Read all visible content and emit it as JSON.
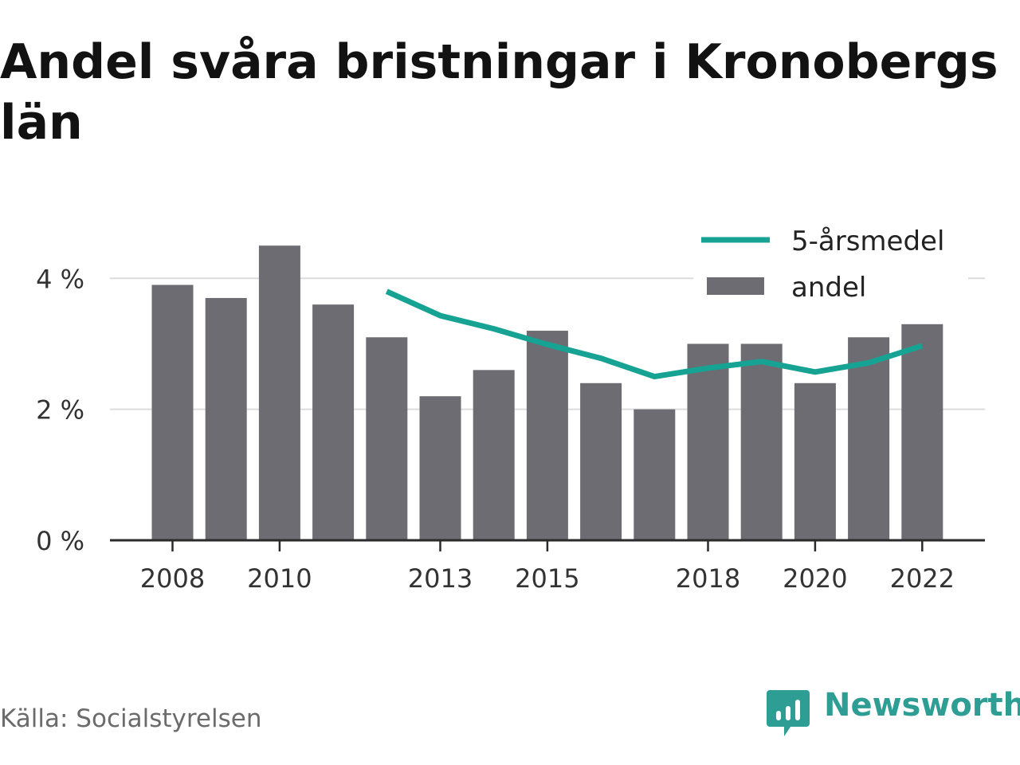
{
  "title": "Andel svåra bristningar i Kronobergs län",
  "source": "Källa: Socialstyrelsen",
  "brand": {
    "name": "Newsworthy",
    "icon": "newsworthy-logo-icon",
    "color": "#2e9e95"
  },
  "colors": {
    "bar": "#6d6c72",
    "line": "#16a394",
    "grid": "#dcdcdc",
    "axis": "#2b2b2b",
    "text": "#333333"
  },
  "chart_data": {
    "type": "bar",
    "x": [
      2008,
      2009,
      2010,
      2011,
      2012,
      2013,
      2014,
      2015,
      2016,
      2017,
      2018,
      2019,
      2020,
      2021,
      2022
    ],
    "xticks": [
      "2008",
      "2010",
      "2013",
      "2015",
      "2018",
      "2020",
      "2022"
    ],
    "xtick_years": [
      2008,
      2010,
      2013,
      2015,
      2018,
      2020,
      2022
    ],
    "yticks": [
      "0 %",
      "2 %",
      "4 %"
    ],
    "ytick_values": [
      0,
      2,
      4
    ],
    "ylim": [
      0,
      4.6
    ],
    "grid": true,
    "legend_position": "top-right",
    "series": [
      {
        "name": "andel",
        "type": "bar",
        "values": [
          3.9,
          3.7,
          4.5,
          3.6,
          3.1,
          2.2,
          2.6,
          3.2,
          2.4,
          2.0,
          3.0,
          3.0,
          2.4,
          3.1,
          3.3
        ]
      },
      {
        "name": "5-årsmedel",
        "type": "line",
        "values": [
          null,
          null,
          null,
          null,
          3.8,
          3.43,
          3.23,
          2.99,
          2.78,
          2.5,
          2.63,
          2.73,
          2.57,
          2.71,
          2.97
        ]
      }
    ],
    "legend": [
      "5-årsmedel",
      "andel"
    ]
  }
}
